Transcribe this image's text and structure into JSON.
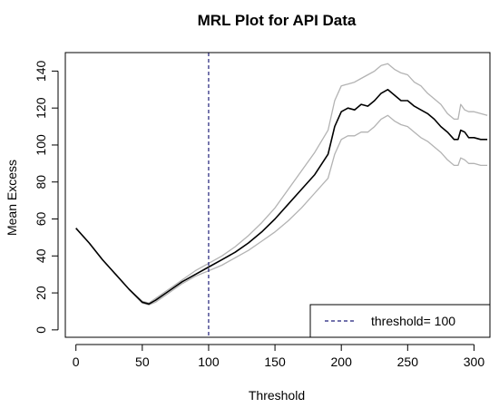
{
  "chart_data": {
    "type": "line",
    "title": "MRL Plot for API Data",
    "xlabel": "Threshold",
    "ylabel": "Mean Excess",
    "xlim": [
      -8,
      312
    ],
    "ylim": [
      -4,
      150
    ],
    "xticks": [
      0,
      50,
      100,
      150,
      200,
      250,
      300
    ],
    "yticks": [
      0,
      20,
      40,
      60,
      80,
      100,
      120,
      140
    ],
    "xtick_labels": [
      "0",
      "50",
      "100",
      "150",
      "200",
      "250",
      "300"
    ],
    "ytick_labels": [
      "0",
      "20",
      "40",
      "60",
      "80",
      "100",
      "120",
      "140"
    ],
    "grid": false,
    "legend_position": "bottom-right",
    "threshold": 100,
    "legend": {
      "label": "threshold= 100"
    },
    "colors": {
      "mean": "#000000",
      "band": "#b3b3b3",
      "threshold": "#1f1f7a"
    },
    "series": [
      {
        "name": "",
        "role": "mean",
        "x": [
          0,
          10,
          20,
          30,
          40,
          50,
          55,
          60,
          70,
          80,
          90,
          100,
          110,
          120,
          130,
          140,
          150,
          160,
          170,
          180,
          190,
          195,
          200,
          205,
          210,
          215,
          220,
          225,
          230,
          235,
          240,
          245,
          250,
          255,
          260,
          265,
          270,
          275,
          280,
          285,
          288,
          290,
          293,
          296,
          300,
          305,
          310
        ],
        "y": [
          55,
          47,
          38,
          30,
          22,
          15,
          14,
          16,
          21,
          26,
          30,
          34,
          38,
          42,
          47,
          53,
          60,
          68,
          76,
          84,
          95,
          110,
          118,
          120,
          119,
          122,
          121,
          124,
          128,
          130,
          127,
          124,
          124,
          121,
          119,
          117,
          114,
          110,
          107,
          103,
          103,
          108,
          107,
          104,
          104,
          103,
          103
        ]
      },
      {
        "name": "",
        "role": "upper",
        "x": [
          0,
          10,
          20,
          30,
          40,
          50,
          55,
          60,
          70,
          80,
          90,
          100,
          110,
          120,
          130,
          140,
          150,
          160,
          170,
          180,
          190,
          195,
          200,
          205,
          210,
          215,
          220,
          225,
          230,
          235,
          240,
          245,
          250,
          255,
          260,
          265,
          270,
          275,
          280,
          285,
          288,
          290,
          293,
          296,
          300,
          305,
          310
        ],
        "y": [
          55,
          47,
          38,
          30,
          22,
          15.5,
          14.5,
          17,
          22,
          27,
          32,
          36,
          40,
          45,
          51,
          58,
          66,
          76,
          86,
          96,
          108,
          124,
          132,
          133,
          134,
          136,
          138,
          140,
          143,
          144,
          141,
          139,
          138,
          134,
          132,
          128,
          125,
          122,
          117,
          114,
          114,
          122,
          119,
          118,
          118,
          117,
          116
        ]
      },
      {
        "name": "",
        "role": "lower",
        "x": [
          0,
          10,
          20,
          30,
          40,
          50,
          55,
          60,
          70,
          80,
          90,
          100,
          110,
          120,
          130,
          140,
          150,
          160,
          170,
          180,
          190,
          195,
          200,
          205,
          210,
          215,
          220,
          225,
          230,
          235,
          240,
          245,
          250,
          255,
          260,
          265,
          270,
          275,
          280,
          285,
          288,
          290,
          293,
          296,
          300,
          305,
          310
        ],
        "y": [
          55,
          47,
          38,
          30,
          22,
          14.5,
          13.5,
          15,
          20,
          25,
          29,
          32,
          35,
          39,
          43,
          48,
          53,
          59,
          66,
          74,
          82,
          95,
          103,
          105,
          105,
          107,
          107,
          110,
          114,
          116,
          113,
          111,
          110,
          107,
          104,
          102,
          99,
          96,
          92,
          89,
          89,
          93,
          92,
          90,
          90,
          89,
          89
        ]
      }
    ]
  }
}
